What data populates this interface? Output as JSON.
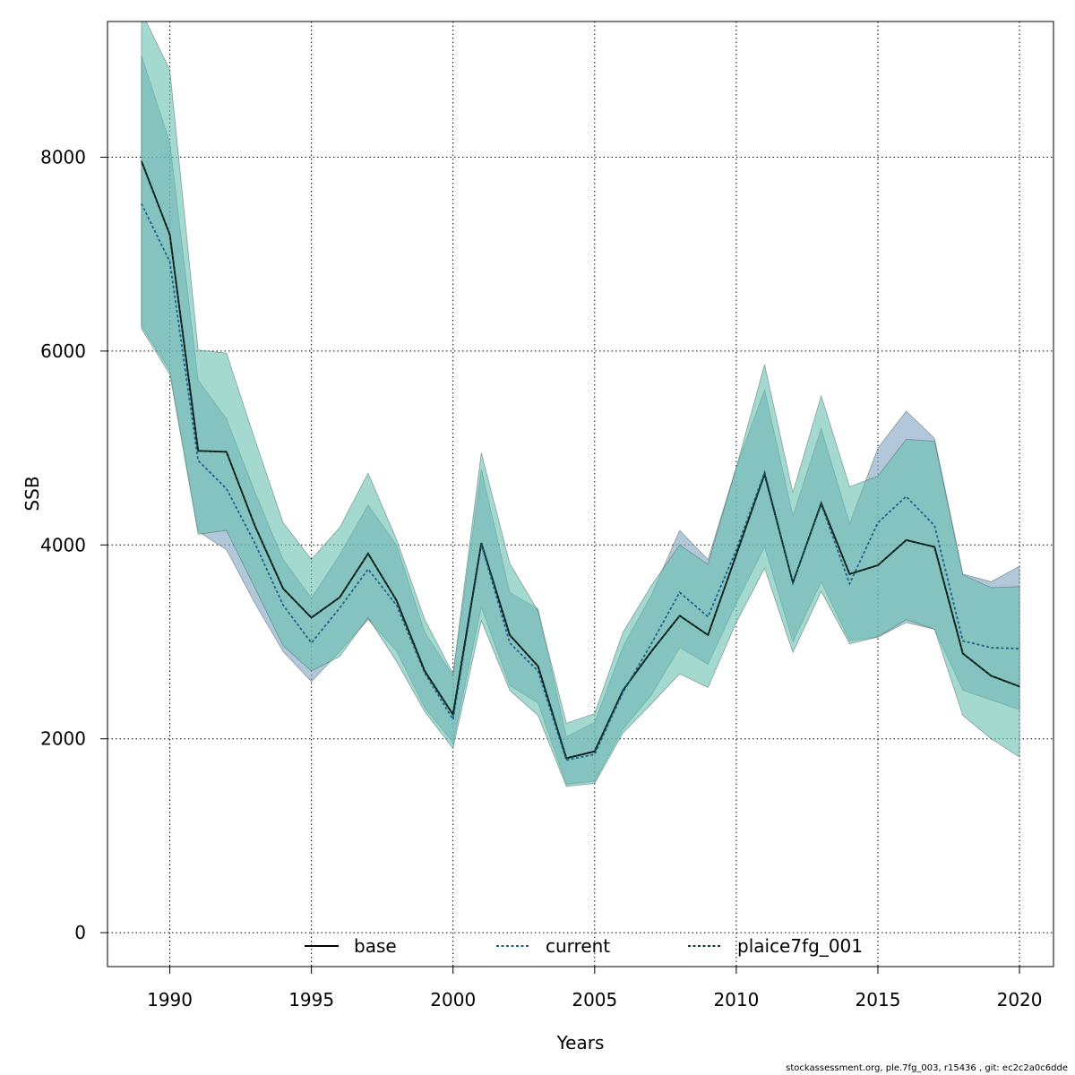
{
  "chart_data": {
    "type": "line",
    "xlabel": "Years",
    "ylabel": "SSB",
    "xlim": [
      1987.8,
      2021.2
    ],
    "ylim": [
      -350,
      9400
    ],
    "x_ticks": [
      1990,
      1995,
      2000,
      2005,
      2010,
      2015,
      2020
    ],
    "y_ticks": [
      0,
      2000,
      4000,
      6000,
      8000
    ],
    "x_tick_labels": [
      "1990",
      "1995",
      "2000",
      "2005",
      "2010",
      "2015",
      "2020"
    ],
    "y_tick_labels": [
      "0",
      "2000",
      "4000",
      "6000",
      "8000"
    ],
    "grid": true,
    "legend_position": "bottom",
    "x": [
      1989,
      1990,
      1991,
      1992,
      1993,
      1994,
      1995,
      1996,
      1997,
      1998,
      1999,
      2000,
      2001,
      2002,
      2003,
      2004,
      2005,
      2006,
      2007,
      2008,
      2009,
      2010,
      2011,
      2012,
      2013,
      2014,
      2015,
      2016,
      2017,
      2018,
      2019,
      2020
    ],
    "series": [
      {
        "name": "base",
        "line_style": "solid",
        "line_color": "#000000",
        "band_color": "#7fa3c2",
        "values": [
          7960,
          7200,
          4970,
          4960,
          4200,
          3550,
          3250,
          3460,
          3910,
          3430,
          2700,
          2250,
          4020,
          3070,
          2750,
          1800,
          1870,
          2500,
          2900,
          3270,
          3070,
          3900,
          4730,
          3610,
          4430,
          3700,
          3790,
          4050,
          3980,
          2880,
          2650,
          2540
        ],
        "lower": [
          6260,
          5800,
          4140,
          3950,
          3400,
          2900,
          2590,
          2900,
          3230,
          2910,
          2320,
          1960,
          3360,
          2550,
          2370,
          1530,
          1560,
          2100,
          2450,
          2940,
          2770,
          3400,
          3980,
          3000,
          3620,
          3010,
          3050,
          3200,
          3130,
          2500,
          2400,
          2300
        ],
        "upper": [
          9050,
          8150,
          5700,
          5300,
          4550,
          3850,
          3450,
          3900,
          4410,
          4000,
          3100,
          2650,
          4780,
          3510,
          3340,
          2020,
          2170,
          2950,
          3480,
          4150,
          3850,
          4800,
          5600,
          4300,
          5200,
          4220,
          5000,
          5380,
          5100,
          3700,
          3620,
          3780
        ]
      },
      {
        "name": "current",
        "line_style": "dotted",
        "line_color": "#1f5f8b",
        "band_color": "#7fa3c2",
        "values": [
          7520,
          6920,
          4870,
          4580,
          4020,
          3380,
          2990,
          3350,
          3750,
          3380,
          2680,
          2200,
          4010,
          2990,
          2700,
          1780,
          1840,
          2480,
          2980,
          3510,
          3260,
          3950,
          4750,
          3610,
          4420,
          3600,
          4230,
          4500,
          4200,
          3010,
          2940,
          2930
        ]
      },
      {
        "name": "plaice7fg_001",
        "line_style": "dotted",
        "line_color": "#0d3d33",
        "band_color": "#66bfae",
        "values": [
          7960,
          7200,
          4970,
          4960,
          4200,
          3550,
          3250,
          3460,
          3910,
          3430,
          2700,
          2250,
          4020,
          3070,
          2750,
          1800,
          1870,
          2500,
          2900,
          3270,
          3070,
          3900,
          4730,
          3610,
          4430,
          3700,
          3790,
          4050,
          3980,
          2880,
          2650,
          2540
        ],
        "lower": [
          6230,
          5760,
          4110,
          4150,
          3560,
          2960,
          2700,
          2850,
          3250,
          2800,
          2280,
          1900,
          3220,
          2500,
          2240,
          1510,
          1540,
          2060,
          2360,
          2670,
          2530,
          3200,
          3760,
          2890,
          3520,
          2980,
          3050,
          3230,
          3130,
          2240,
          2000,
          1810
        ],
        "upper": [
          9500,
          8900,
          6010,
          5980,
          5090,
          4230,
          3850,
          4180,
          4740,
          4060,
          3230,
          2670,
          4950,
          3810,
          3320,
          2160,
          2260,
          3100,
          3580,
          4000,
          3800,
          4800,
          5860,
          4540,
          5540,
          4600,
          4710,
          5090,
          5070,
          3690,
          3560,
          3570
        ]
      }
    ]
  },
  "footer": {
    "text": "stockassessment.org, ple.7fg_003, r15436 , git: ec2c2a0c6dde"
  }
}
